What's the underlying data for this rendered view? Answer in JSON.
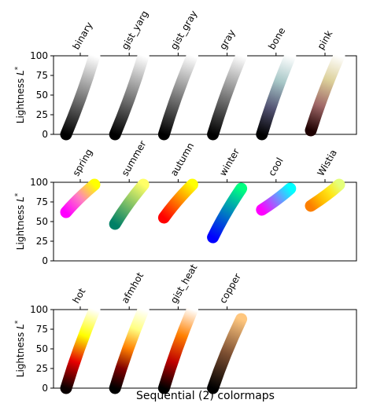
{
  "figure": {
    "xlabel": "Sequential (2) colormaps"
  },
  "chart_data": [
    {
      "type": "scatter",
      "title": "",
      "ylabel": "Lightness L*",
      "ylim": [
        0,
        100
      ],
      "yticks": [
        0,
        25,
        50,
        75,
        100
      ],
      "x_categories": [
        "binary",
        "gist_yarg",
        "gist_gray",
        "gray",
        "bone",
        "pink"
      ],
      "series": [
        {
          "name": "binary",
          "L_start": 100,
          "L_end": 0,
          "stops": [
            "#ffffff",
            "#000000"
          ]
        },
        {
          "name": "gist_yarg",
          "L_start": 100,
          "L_end": 0,
          "stops": [
            "#ffffff",
            "#000000"
          ]
        },
        {
          "name": "gist_gray",
          "L_start": 0,
          "L_end": 100,
          "stops": [
            "#000000",
            "#ffffff"
          ]
        },
        {
          "name": "gray",
          "L_start": 0,
          "L_end": 100,
          "stops": [
            "#000000",
            "#ffffff"
          ]
        },
        {
          "name": "bone",
          "L_start": 0,
          "L_end": 100,
          "stops": [
            "#000000",
            "#545474",
            "#a7c7c7",
            "#ffffff"
          ]
        },
        {
          "name": "pink",
          "L_start": 5,
          "L_end": 100,
          "stops": [
            "#1e0000",
            "#a06868",
            "#dcd09a",
            "#ffffff"
          ]
        }
      ]
    },
    {
      "type": "scatter",
      "title": "",
      "ylabel": "Lightness L*",
      "ylim": [
        0,
        100
      ],
      "yticks": [
        0,
        25,
        50,
        75,
        100
      ],
      "x_categories": [
        "spring",
        "summer",
        "autumn",
        "winter",
        "cool",
        "Wistia"
      ],
      "series": [
        {
          "name": "spring",
          "L_start": 62,
          "L_end": 97,
          "stops": [
            "#ff00ff",
            "#ff80c0",
            "#ffff00"
          ]
        },
        {
          "name": "summer",
          "L_start": 47,
          "L_end": 97,
          "stops": [
            "#008066",
            "#80c066",
            "#ffff66"
          ]
        },
        {
          "name": "autumn",
          "L_start": 55,
          "L_end": 97,
          "stops": [
            "#ff0000",
            "#ff8000",
            "#ffff00"
          ]
        },
        {
          "name": "winter",
          "L_start": 30,
          "L_end": 92,
          "stops": [
            "#0000ff",
            "#0080c0",
            "#00ff80"
          ]
        },
        {
          "name": "cool",
          "L_start": 92,
          "L_end": 65,
          "stops": [
            "#00ffff",
            "#8080ff",
            "#ff00ff"
          ]
        },
        {
          "name": "Wistia",
          "L_start": 97,
          "L_end": 70,
          "stops": [
            "#e4ff7a",
            "#ffe81a",
            "#ffbd00",
            "#fc7f00"
          ]
        }
      ]
    },
    {
      "type": "scatter",
      "title": "",
      "ylabel": "Lightness L*",
      "ylim": [
        0,
        100
      ],
      "yticks": [
        0,
        25,
        50,
        75,
        100
      ],
      "x_categories": [
        "hot",
        "afmhot",
        "gist_heat",
        "copper"
      ],
      "series": [
        {
          "name": "hot",
          "L_start": 0,
          "L_end": 100,
          "stops": [
            "#0b0000",
            "#e60000",
            "#ffff00",
            "#ffffff"
          ]
        },
        {
          "name": "afmhot",
          "L_start": 0,
          "L_end": 100,
          "stops": [
            "#000000",
            "#800000",
            "#ff8000",
            "#ffff80",
            "#ffffff"
          ]
        },
        {
          "name": "gist_heat",
          "L_start": 0,
          "L_end": 100,
          "stops": [
            "#000000",
            "#bf0000",
            "#ff8000",
            "#ffffff"
          ]
        },
        {
          "name": "copper",
          "L_start": 0,
          "L_end": 88,
          "stops": [
            "#000000",
            "#7d4f32",
            "#ffc77f"
          ]
        }
      ]
    }
  ]
}
